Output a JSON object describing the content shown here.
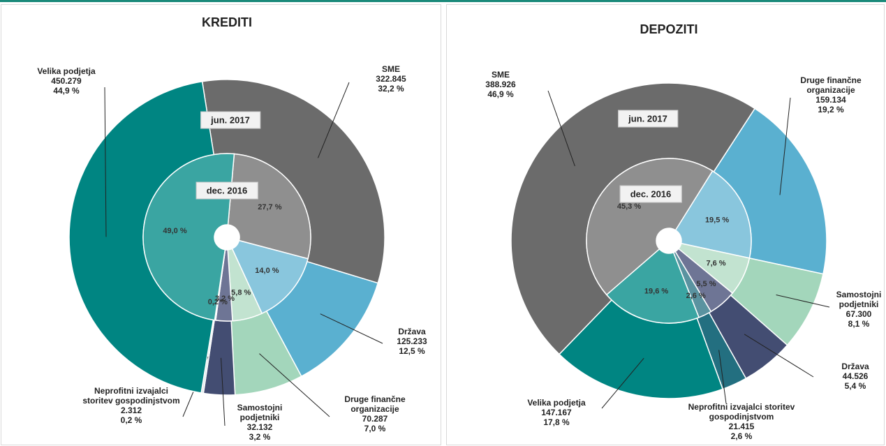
{
  "chart_data": [
    {
      "type": "donut",
      "title": "KREDITI",
      "categories": [
        "SME",
        "Država",
        "Druge finančne organizacije",
        "Samostojni podjetniki",
        "Neprofitni izvajalci storitev gospodinjstvom",
        "Velika podjetja"
      ],
      "series": [
        {
          "name": "jun. 2017",
          "colors": [
            "#6b6b6b",
            "#5ab0d0",
            "#a3d6bb",
            "#434d72",
            "#dfe9ec",
            "#008582"
          ],
          "values": [
            322845,
            125233,
            70287,
            32132,
            2312,
            450279
          ],
          "value_labels": [
            "322.845",
            "125.233",
            "70.287",
            "32.132",
            "2.312",
            "450.279"
          ],
          "percents": [
            32.2,
            12.5,
            7.0,
            3.2,
            0.2,
            44.9
          ],
          "percent_labels": [
            "32,2 %",
            "12,5 %",
            "7,0 %",
            "3,2 %",
            "0,2 %",
            "44,9 %"
          ]
        },
        {
          "name": "dec. 2016",
          "colors": [
            "#8f8f8f",
            "#89c6dd",
            "#c2e3d0",
            "#6e7595",
            "#eef3f3",
            "#3aa5a2"
          ],
          "values": [
            27.7,
            14.0,
            5.8,
            3.2,
            0.2,
            49.0
          ],
          "value_labels": [
            "27,7 %",
            "14,0 %",
            "5,8 %",
            "3,2 %",
            "0,2 %",
            "49,0 %"
          ]
        }
      ]
    },
    {
      "type": "donut",
      "title": "DEPOZITI",
      "categories": [
        "Druge finančne organizacije",
        "Samostojni podjetniki",
        "Država",
        "Neprofitni izvajalci storitev gospodinjstvom",
        "Velika podjetja",
        "SME"
      ],
      "series": [
        {
          "name": "jun. 2017",
          "colors": [
            "#5ab0d0",
            "#a3d6bb",
            "#434d72",
            "#236f80",
            "#008582",
            "#6b6b6b"
          ],
          "values": [
            159134,
            67300,
            44526,
            21415,
            147167,
            388926
          ],
          "value_labels": [
            "159.134",
            "67.300",
            "44.526",
            "21.415",
            "147.167",
            "388.926"
          ],
          "percents": [
            19.2,
            8.1,
            5.4,
            2.6,
            17.8,
            46.9
          ],
          "percent_labels": [
            "19,2 %",
            "8,1 %",
            "5,4 %",
            "2,6 %",
            "17,8 %",
            "46,9 %"
          ]
        },
        {
          "name": "dec. 2016",
          "colors": [
            "#89c6dd",
            "#c2e3d0",
            "#6e7595",
            "#5a93a0",
            "#3aa5a2",
            "#8f8f8f"
          ],
          "values": [
            19.5,
            7.6,
            5.5,
            2.6,
            19.6,
            45.3
          ],
          "value_labels": [
            "19,5 %",
            "7,6 %",
            "5,5 %",
            "2,6 %",
            "19,6 %",
            "45,3 %"
          ]
        }
      ]
    }
  ]
}
